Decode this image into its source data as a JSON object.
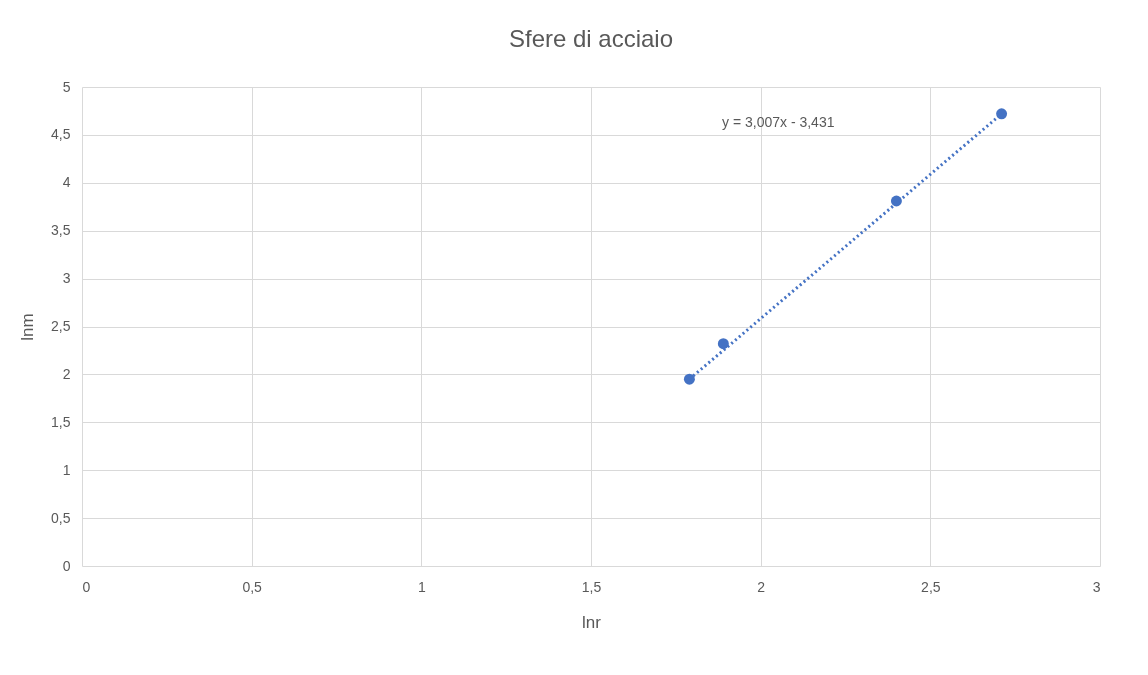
{
  "chart_data": {
    "type": "scatter",
    "title": "Sfere di acciaio",
    "xlabel": "lnr",
    "ylabel": "lnm",
    "xlim": [
      0,
      3
    ],
    "xticks": [
      {
        "value": 0,
        "label": "0"
      },
      {
        "value": 0.5,
        "label": "0,5"
      },
      {
        "value": 1,
        "label": "1"
      },
      {
        "value": 1.5,
        "label": "1,5"
      },
      {
        "value": 2,
        "label": "2"
      },
      {
        "value": 2.5,
        "label": "2,5"
      },
      {
        "value": 3,
        "label": "3"
      }
    ],
    "ylim": [
      0,
      5
    ],
    "yticks": [
      {
        "value": 0,
        "label": "0"
      },
      {
        "value": 0.5,
        "label": "0,5"
      },
      {
        "value": 1,
        "label": "1"
      },
      {
        "value": 1.5,
        "label": "1,5"
      },
      {
        "value": 2,
        "label": "2"
      },
      {
        "value": 2.5,
        "label": "2,5"
      },
      {
        "value": 3,
        "label": "3"
      },
      {
        "value": 3.5,
        "label": "3,5"
      },
      {
        "value": 4,
        "label": "4"
      },
      {
        "value": 4.5,
        "label": "4,5"
      },
      {
        "value": 5,
        "label": "5"
      }
    ],
    "grid": true,
    "series": [
      {
        "color": "#4472c4",
        "marker": "circle",
        "x": [
          1.79,
          1.89,
          2.4,
          2.71
        ],
        "values": [
          1.95,
          2.32,
          3.81,
          4.72
        ]
      },
      {
        "type": "line",
        "color": "#4472c4",
        "line_style": "dotted",
        "marker": "none",
        "x": [
          1.79,
          2.71
        ],
        "values": [
          1.95,
          4.72
        ]
      }
    ],
    "annotations": [
      "y = 3,007x - 3,431"
    ]
  }
}
